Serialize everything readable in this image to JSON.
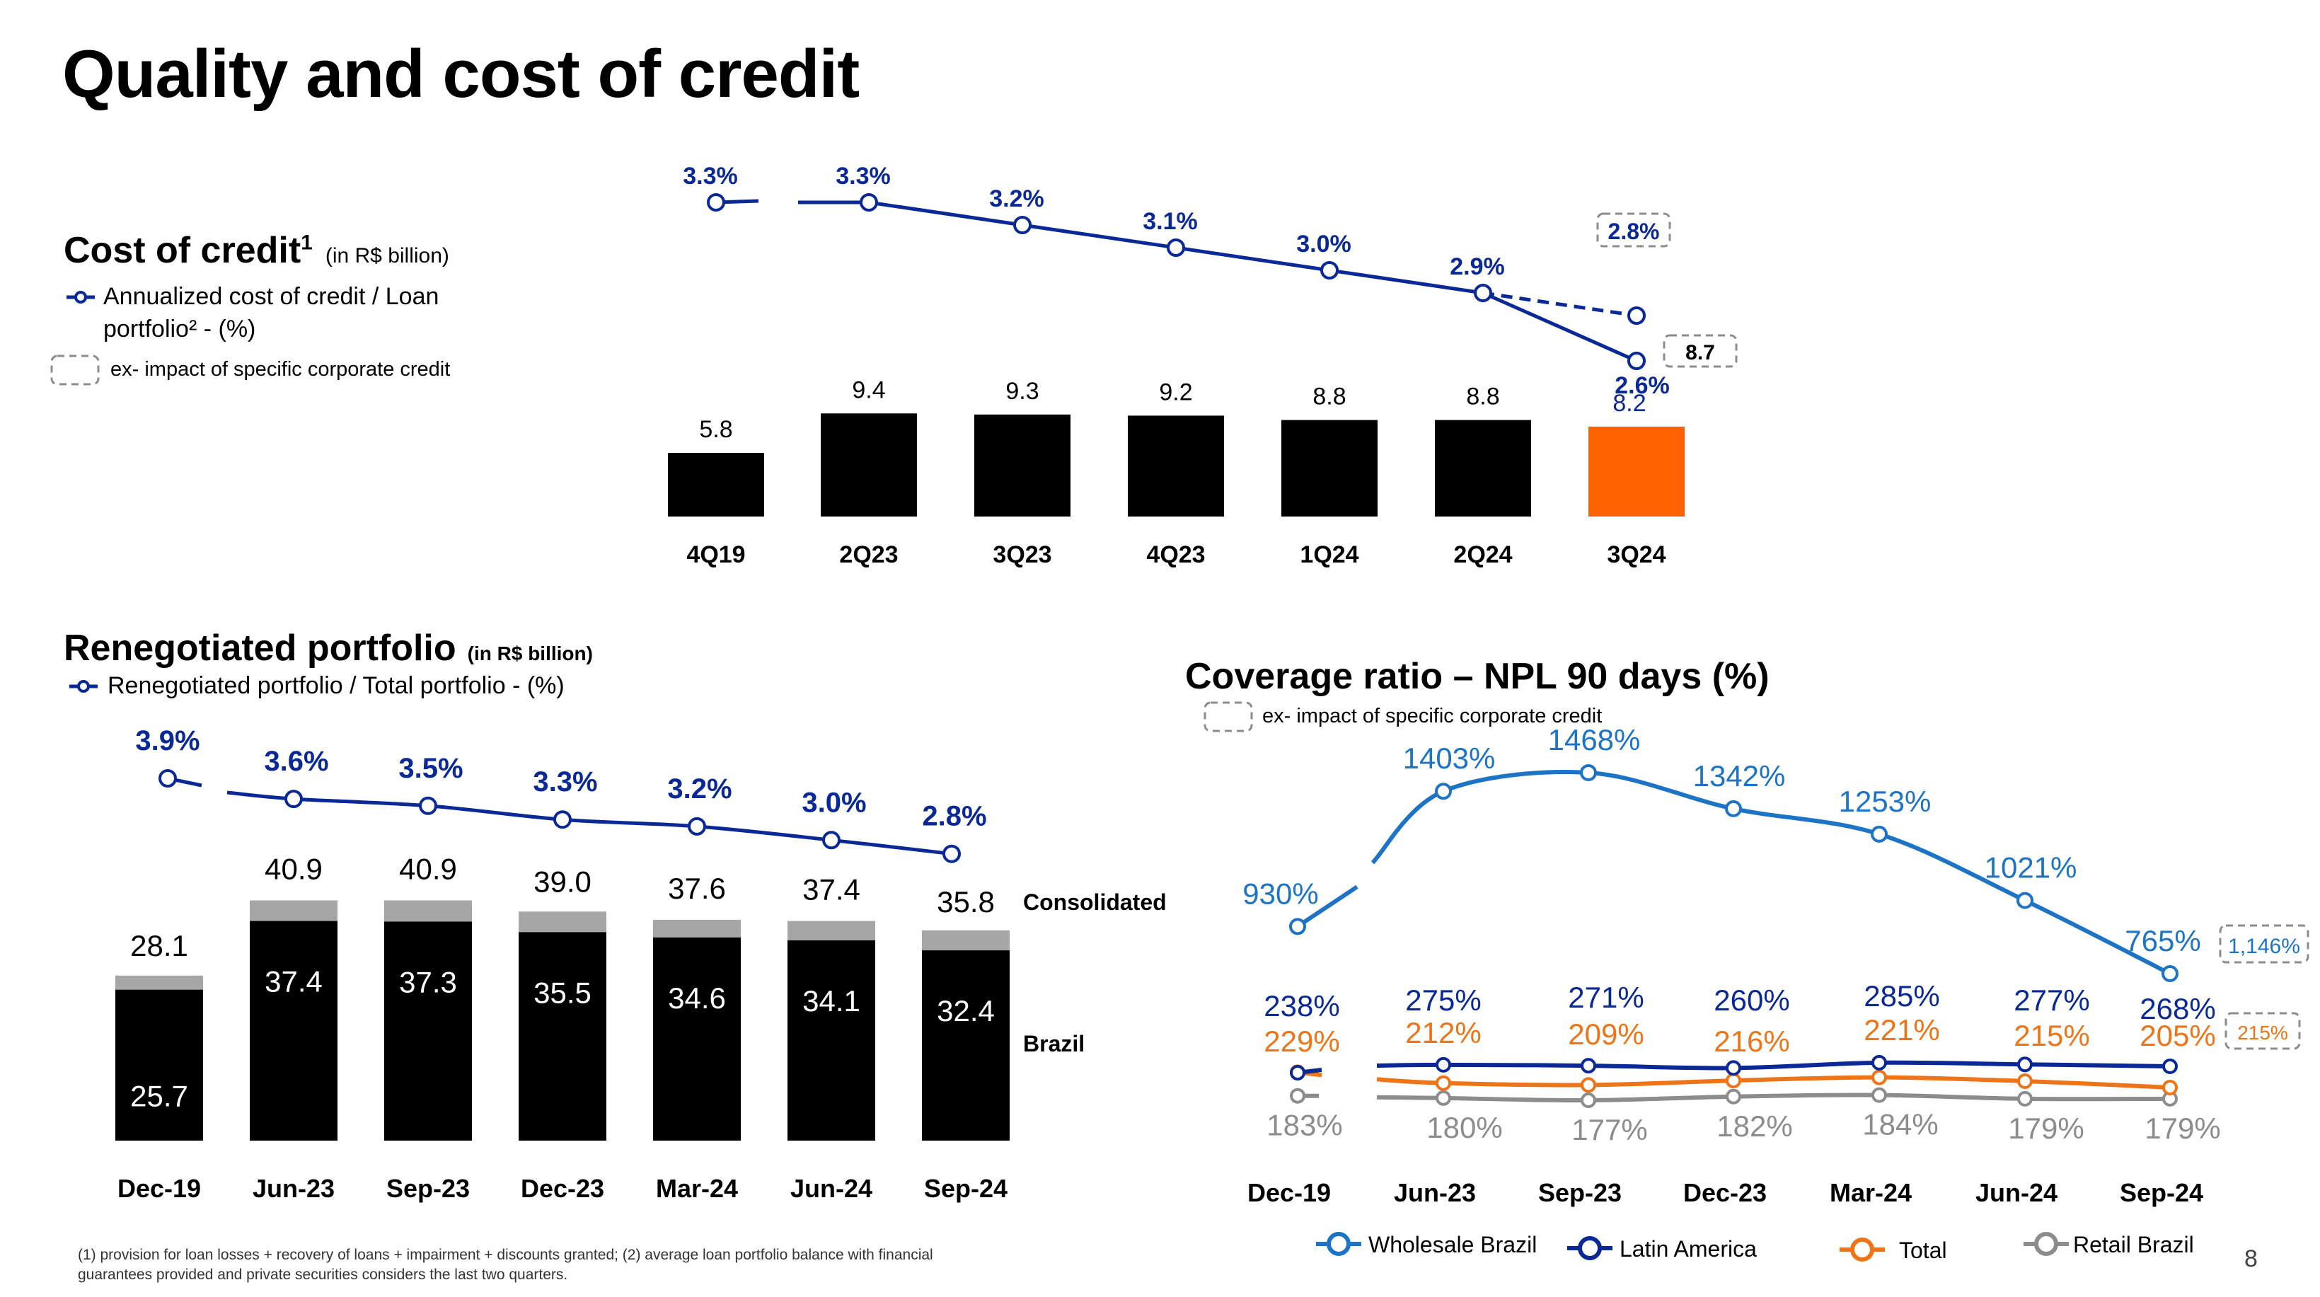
{
  "page": {
    "title": "Quality and cost of credit",
    "page_number": "8",
    "footnote": "(1) provision for loan losses + recovery of loans + impairment + discounts granted; (2) average loan portfolio balance with financial guarantees provided and private securities considers the last two quarters."
  },
  "colors": {
    "black_bar": "#000000",
    "accent_bar": "#FF6200",
    "navy": "#0A2896",
    "blue": "#1D74C6",
    "orange": "#EE7418",
    "gray": "#8C8C8C",
    "cap_gray": "#A6A6A6"
  },
  "cost_credit": {
    "title": "Cost of credit",
    "title_sup": "1",
    "unit": "(in R$ billion)",
    "legend_line": "Annualized cost of credit / Loan portfolio² - (%)",
    "legend_ex": "ex- impact of specific corporate credit"
  },
  "renego": {
    "title": "Renegotiated portfolio",
    "unit": "(in R$ billion)",
    "legend_line": "Renegotiated portfolio / Total portfolio - (%)",
    "label_consolidated": "Consolidated",
    "label_brazil": "Brazil"
  },
  "coverage": {
    "title": "Coverage ratio – NPL 90 days (%)",
    "legend_ex": "ex- impact of specific corporate credit",
    "legend": [
      "Wholesale Brazil",
      "Latin America",
      "Total",
      "Retail Brazil"
    ]
  },
  "chart_data": [
    {
      "type": "bar",
      "name": "Cost of credit",
      "categories": [
        "4Q19",
        "2Q23",
        "3Q23",
        "4Q23",
        "1Q24",
        "2Q24",
        "3Q24"
      ],
      "values": [
        5.8,
        9.4,
        9.3,
        9.2,
        8.8,
        8.8,
        8.2
      ],
      "value_labels": [
        "5.8",
        "9.4",
        "9.3",
        "9.2",
        "8.8",
        "8.8",
        "8.2"
      ],
      "highlight_index": 6,
      "ex_impact_value_label": "8.7",
      "line": {
        "values": [
          3.3,
          3.3,
          3.2,
          3.1,
          3.0,
          2.9,
          2.6
        ],
        "labels": [
          "3.3%",
          "3.3%",
          "3.2%",
          "3.1%",
          "3.0%",
          "2.9%",
          "2.6%"
        ],
        "ex_impact_label": "2.8%",
        "ex_impact_value": 2.8
      }
    },
    {
      "type": "bar",
      "name": "Renegotiated portfolio",
      "categories": [
        "Dec-19",
        "Jun-23",
        "Sep-23",
        "Dec-23",
        "Mar-24",
        "Jun-24",
        "Sep-24"
      ],
      "series": [
        {
          "name": "Brazil",
          "values": [
            25.7,
            37.4,
            37.3,
            35.5,
            34.6,
            34.1,
            32.4
          ],
          "labels": [
            "25.7",
            "37.4",
            "37.3",
            "35.5",
            "34.6",
            "34.1",
            "32.4"
          ]
        },
        {
          "name": "Consolidated",
          "values": [
            28.1,
            40.9,
            40.9,
            39.0,
            37.6,
            37.4,
            35.8
          ],
          "labels": [
            "28.1",
            "40.9",
            "40.9",
            "39.0",
            "37.6",
            "37.4",
            "35.8"
          ]
        }
      ],
      "line": {
        "values": [
          3.9,
          3.6,
          3.5,
          3.3,
          3.2,
          3.0,
          2.8
        ],
        "labels": [
          "3.9%",
          "3.6%",
          "3.5%",
          "3.3%",
          "3.2%",
          "3.0%",
          "2.8%"
        ]
      }
    },
    {
      "type": "line",
      "name": "Coverage ratio",
      "categories": [
        "Dec-19",
        "Jun-23",
        "Sep-23",
        "Dec-23",
        "Mar-24",
        "Jun-24",
        "Sep-24"
      ],
      "series": [
        {
          "name": "Wholesale Brazil",
          "values": [
            930,
            1403,
            1468,
            1342,
            1253,
            1021,
            765
          ],
          "labels": [
            "930%",
            "1403%",
            "1468%",
            "1342%",
            "1253%",
            "1021%",
            "765%"
          ],
          "ex_impact_label": "1,146%"
        },
        {
          "name": "Latin America",
          "values": [
            238,
            275,
            271,
            260,
            285,
            277,
            268
          ],
          "labels": [
            "238%",
            "275%",
            "271%",
            "260%",
            "285%",
            "277%",
            "268%"
          ]
        },
        {
          "name": "Total",
          "values": [
            229,
            212,
            209,
            216,
            221,
            215,
            205
          ],
          "labels": [
            "229%",
            "212%",
            "209%",
            "216%",
            "221%",
            "215%",
            "205%"
          ],
          "ex_impact_label": "215%"
        },
        {
          "name": "Retail Brazil",
          "values": [
            183,
            180,
            177,
            182,
            184,
            179,
            179
          ],
          "labels": [
            "183%",
            "180%",
            "177%",
            "182%",
            "184%",
            "179%",
            "179%"
          ]
        }
      ]
    }
  ]
}
